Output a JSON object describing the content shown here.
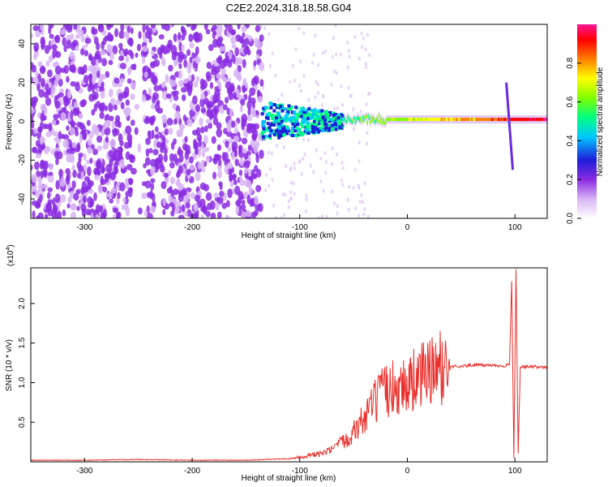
{
  "title": "C2E2.2024.318.18.58.G04",
  "chart_data": [
    {
      "type": "heatmap",
      "title": "C2E2.2024.318.18.58.G04",
      "xlabel": "Height of straight line (km)",
      "ylabel": "Frequency (Hz)",
      "xlim": [
        -350,
        130
      ],
      "ylim": [
        -50,
        50
      ],
      "xticks": [
        -300,
        -200,
        -100,
        0,
        100
      ],
      "yticks": [
        -40,
        -20,
        0,
        20,
        40
      ],
      "colorbar": {
        "label": "Normalized spectral amplitude",
        "range": [
          0,
          1
        ],
        "ticks": [
          0.0,
          0.2,
          0.4,
          0.6,
          0.8
        ],
        "colors": [
          "#ffffff",
          "#d8b4f4",
          "#8a2be2",
          "#1e1ed8",
          "#00c8ff",
          "#00ff80",
          "#80ff00",
          "#ffff00",
          "#ff8000",
          "#ff0000",
          "#ff1493"
        ]
      },
      "features": {
        "noise_region_x": [
          -350,
          -135
        ],
        "faint_gap_x": [
          -255,
          -245
        ],
        "signal_burst": {
          "x": [
            -135,
            -60
          ],
          "freq_spread": [
            -10,
            10
          ],
          "peak_amplitude": 0.45
        },
        "carrier_line": {
          "x": [
            -60,
            130
          ],
          "freq": 1,
          "peak_amplitude": 0.9
        },
        "spike": {
          "x": 95,
          "freq_range": [
            -25,
            20
          ]
        }
      }
    },
    {
      "type": "line",
      "xlabel": "Height of straight line (km)",
      "ylabel": "SNR (10 * v/v)",
      "multiplier": "(x10",
      "multiplier_exp": "4",
      "xlim": [
        -350,
        130
      ],
      "ylim": [
        0,
        2.45
      ],
      "xticks": [
        -300,
        -200,
        -100,
        0,
        100
      ],
      "yticks": [
        "0.5",
        "1.0",
        "1.5",
        "2.0"
      ],
      "color": "#e8302c",
      "series": [
        {
          "x": [
            -350,
            -300,
            -250,
            -200,
            -150,
            -110,
            -100,
            -80,
            -70,
            -60,
            -50,
            -40,
            -30,
            -20,
            -10,
            0,
            10,
            20,
            30,
            40,
            60,
            80,
            90,
            95,
            97,
            99,
            101,
            103,
            105,
            110,
            120,
            130
          ],
          "values": [
            0.02,
            0.02,
            0.03,
            0.02,
            0.02,
            0.04,
            0.06,
            0.1,
            0.15,
            0.25,
            0.38,
            0.55,
            0.75,
            0.9,
            0.95,
            0.98,
            1.07,
            1.13,
            1.18,
            1.2,
            1.22,
            1.22,
            1.21,
            1.23,
            2.3,
            0.05,
            2.45,
            0.1,
            1.2,
            1.2,
            1.2,
            1.19
          ]
        }
      ]
    }
  ]
}
